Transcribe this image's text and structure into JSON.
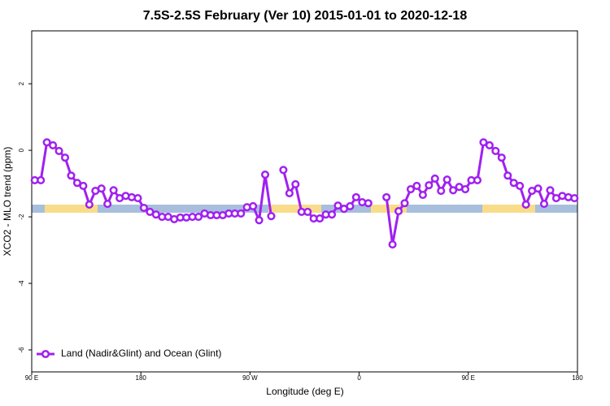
{
  "chart_data": {
    "type": "line",
    "title": "7.5S-2.5S February (Ver 10)   2015-01-01 to 2020-12-18",
    "xlabel": "Longitude (deg E)",
    "ylabel": "XCO2 - MLO trend (ppm)",
    "x": [
      92.5,
      97.5,
      102.5,
      107.5,
      112.5,
      117.5,
      122.5,
      127.5,
      132.5,
      137.5,
      142.5,
      147.5,
      152.5,
      157.5,
      162.5,
      167.5,
      172.5,
      177.5,
      182.5,
      187.5,
      192.5,
      197.5,
      202.5,
      207.5,
      212.5,
      217.5,
      222.5,
      227.5,
      232.5,
      237.5,
      242.5,
      247.5,
      252.5,
      257.5,
      262.5,
      267.5,
      272.5,
      277.5,
      282.5,
      287.5,
      292.5,
      297.5,
      302.5,
      307.5,
      312.5,
      317.5,
      322.5,
      327.5,
      332.5,
      337.5,
      342.5,
      347.5,
      352.5,
      357.5,
      362.5,
      367.5,
      372.5,
      377.5,
      382.5,
      387.5,
      392.5,
      397.5,
      402.5,
      407.5,
      412.5,
      417.5,
      422.5,
      427.5,
      432.5,
      437.5,
      442.5,
      447.5,
      452.5,
      457.5,
      462.5,
      467.5,
      472.5,
      477.5,
      482.5,
      487.5,
      492.5,
      497.5,
      502.5,
      507.5,
      512.5,
      517.5,
      522.5,
      527.5,
      532.5,
      537.5
    ],
    "series": [
      {
        "name": "Land (Nadir&Glint) and Ocean (Glint)",
        "color": "#a020f0",
        "values": [
          -0.9,
          -0.9,
          0.24,
          0.15,
          -0.02,
          -0.22,
          -0.76,
          -0.98,
          -1.07,
          -1.63,
          -1.22,
          -1.15,
          -1.61,
          -1.2,
          -1.44,
          -1.37,
          -1.41,
          -1.44,
          -1.73,
          -1.85,
          -1.93,
          -2.0,
          -2.0,
          -2.07,
          -2.02,
          -2.02,
          -2.0,
          -2.0,
          -1.9,
          -1.95,
          -1.95,
          -1.95,
          -1.9,
          -1.9,
          -1.9,
          -1.71,
          -1.68,
          -2.1,
          -0.73,
          -1.98,
          null,
          -0.59,
          -1.29,
          -1.02,
          -1.85,
          -1.85,
          -2.05,
          -2.05,
          -1.93,
          -1.93,
          -1.66,
          -1.76,
          -1.68,
          -1.41,
          -1.56,
          -1.59,
          null,
          null,
          -1.41,
          -2.83,
          -1.83,
          -1.59,
          -1.17,
          -1.07,
          -1.34,
          -1.05,
          -0.85,
          -1.22,
          -0.88,
          -1.2,
          -1.1,
          -1.17,
          -0.9,
          -0.9,
          0.24,
          0.15,
          -0.02,
          -0.22,
          -0.76,
          -0.98,
          -1.07,
          -1.63,
          -1.22,
          -1.15,
          -1.61,
          -1.2,
          -1.44,
          -1.37,
          -1.41,
          -1.44
        ]
      }
    ],
    "xlim": [
      90,
      540
    ],
    "xticks": [
      {
        "value": 90,
        "label": "90 E"
      },
      180,
      {
        "value": 270,
        "label": "90 W"
      },
      {
        "value": 360,
        "label": "0"
      },
      {
        "value": 450,
        "label": "90 E"
      },
      {
        "value": 540,
        "label": "180"
      }
    ],
    "ylim": [
      -6.66,
      3.59
    ],
    "yticks": [
      2,
      0,
      -2,
      -4,
      -6
    ],
    "legend": "bottomleft"
  }
}
